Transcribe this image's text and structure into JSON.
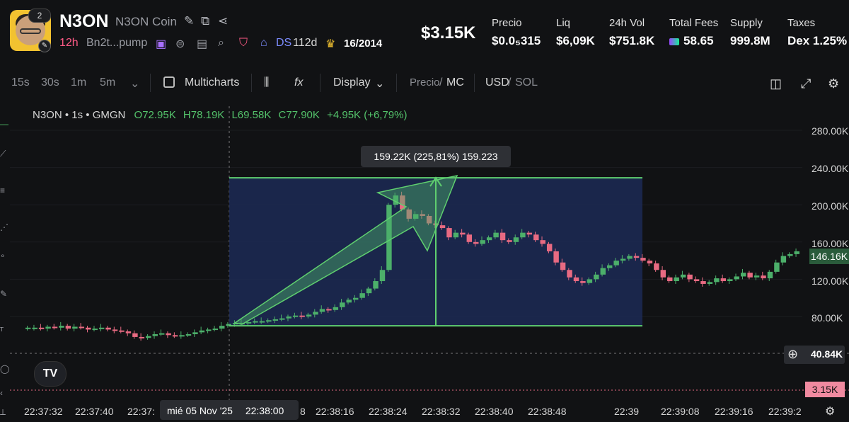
{
  "token": {
    "symbol": "N3ON",
    "name": "N3ON Coin",
    "rank_badge": "2",
    "age": "12h",
    "address": "Bn2t...pump",
    "ds_label": "DS",
    "ds_age": "112d",
    "holders_ratio": "16/2014"
  },
  "header": {
    "market_cap": "$3.15K",
    "stats": [
      {
        "label": "Precio",
        "value": "$0.0₅315"
      },
      {
        "label": "Liq",
        "value": "$6,09K"
      },
      {
        "label": "24h Vol",
        "value": "$751.8K"
      },
      {
        "label": "Total Fees",
        "value": "58.65"
      },
      {
        "label": "Supply",
        "value": "999.8M"
      },
      {
        "label": "Taxes",
        "value": "Dex 1.25%"
      }
    ]
  },
  "toolbar": {
    "intervals": [
      "15s",
      "30s",
      "1m",
      "5m"
    ],
    "multicharts_label": "Multicharts",
    "display_label": "Display",
    "price_label": "Precio",
    "mc_label": "MC",
    "usd_label": "USD",
    "sol_label": "SOL",
    "icons": [
      "candle-type-icon",
      "indicators-icon",
      "camera-icon",
      "expand-icon",
      "settings-icon"
    ]
  },
  "chart_data": {
    "type": "candlestick",
    "legend": {
      "series": "N3ON • 1s • GMGN",
      "o": "O72.95K",
      "h": "H78.19K",
      "l": "L69.58K",
      "c": "C77.90K",
      "change": "+4.95K (+6,79%)"
    },
    "y_ticks": [
      "280.00K",
      "240.00K",
      "200.00K",
      "160.00K",
      "120.00K",
      "80.00K"
    ],
    "x_ticks": [
      "22:37:32",
      "22:37:40",
      "22:37:",
      "8",
      "22:38:16",
      "22:38:24",
      "22:38:32",
      "22:38:40",
      "22:38:48",
      "22:39",
      "22:39:08",
      "22:39:16",
      "22:39:2"
    ],
    "crosshair_date": "mié 05 Nov '25",
    "crosshair_time": "22:38:00",
    "current_tag": "146.16K",
    "crosshair_price": "40.84K",
    "mc_tag": "3.15K",
    "measure_tooltip": "159.22K (225,81%) 159.223",
    "y_range": [
      30,
      300
    ],
    "colors": {
      "up": "#4caf6a",
      "down": "#e86a82",
      "box": "#1c2a55",
      "box_border": "#5fcf6f"
    }
  }
}
